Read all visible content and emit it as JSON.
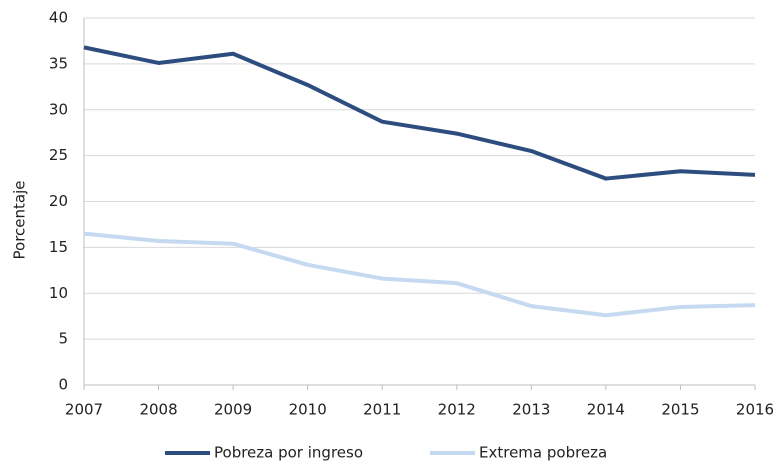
{
  "chart_data": {
    "type": "line",
    "y_label": "Porcentaje",
    "categories": [
      "2007",
      "2008",
      "2009",
      "2010",
      "2011",
      "2012",
      "2013",
      "2014",
      "2015",
      "2016"
    ],
    "series": [
      {
        "name": "Pobreza por ingreso",
        "color": "#2e4d7f",
        "values": [
          36.8,
          35.1,
          36.1,
          32.7,
          28.7,
          27.4,
          25.5,
          22.5,
          23.3,
          22.9
        ]
      },
      {
        "name": "Extrema pobreza",
        "color": "#c5d9f1",
        "values": [
          16.5,
          15.7,
          15.4,
          13.1,
          11.6,
          11.1,
          8.6,
          7.6,
          8.5,
          8.7
        ]
      }
    ],
    "ylim": [
      0,
      40
    ],
    "yticks": [
      0,
      5,
      10,
      15,
      20,
      25,
      30,
      35,
      40
    ],
    "grid": true,
    "legend": "bottom"
  }
}
